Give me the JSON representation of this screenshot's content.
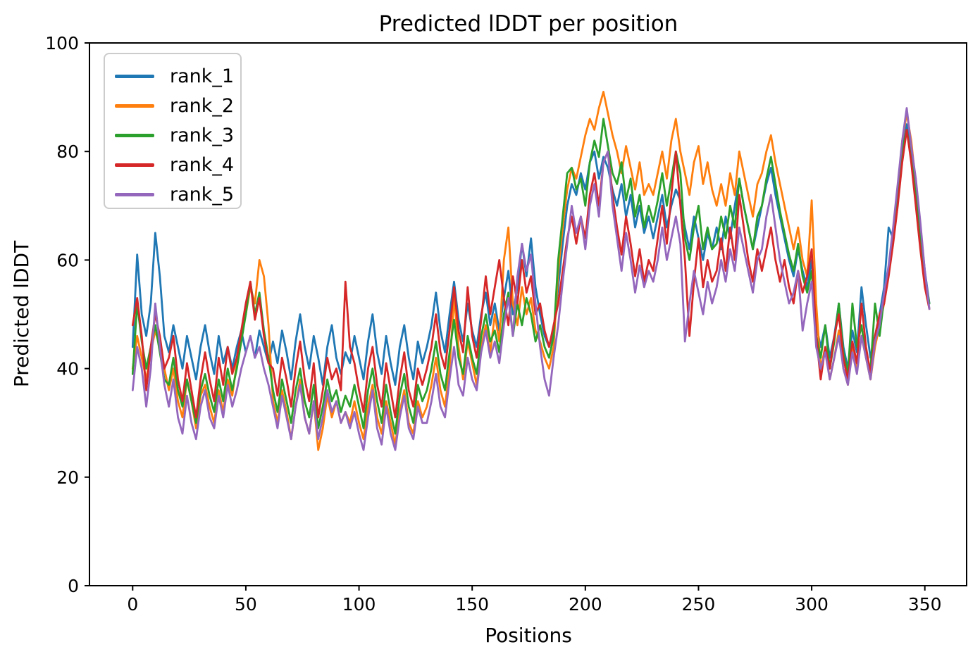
{
  "figure": {
    "kind": "matplotlib-line-plot",
    "background": "#ffffff",
    "spine_color": "#000000",
    "text_color": "#000000"
  },
  "chart_data": {
    "type": "line",
    "title": "Predicted lDDT per position",
    "xlabel": "Positions",
    "ylabel": "Predicted lDDT",
    "xticks": [
      0,
      50,
      100,
      150,
      200,
      250,
      300,
      350
    ],
    "yticks": [
      0,
      20,
      40,
      60,
      80,
      100
    ],
    "ylim": [
      0,
      100
    ],
    "xlim": [
      -17.6,
      369.6
    ],
    "grid": false,
    "legend_position": "upper left",
    "x_start": 0,
    "x_step": 2,
    "series": [
      {
        "name": "rank_1",
        "color": "#1f77b4",
        "values": [
          44,
          61,
          50,
          46,
          52,
          65,
          57,
          46,
          43,
          48,
          44,
          40,
          46,
          42,
          38,
          44,
          48,
          43,
          39,
          46,
          41,
          44,
          40,
          44,
          47,
          43,
          46,
          42,
          47,
          44,
          41,
          45,
          41,
          47,
          43,
          38,
          45,
          50,
          44,
          40,
          46,
          42,
          37,
          44,
          48,
          42,
          39,
          43,
          41,
          46,
          42,
          38,
          45,
          50,
          43,
          39,
          46,
          41,
          37,
          44,
          48,
          42,
          38,
          45,
          41,
          44,
          48,
          54,
          47,
          43,
          50,
          56,
          49,
          45,
          52,
          47,
          44,
          50,
          54,
          48,
          52,
          47,
          53,
          58,
          50,
          55,
          63,
          57,
          64,
          55,
          50,
          46,
          44,
          47,
          55,
          63,
          70,
          74,
          72,
          76,
          73,
          78,
          80,
          75,
          79,
          77,
          73,
          70,
          74,
          68,
          72,
          66,
          70,
          65,
          68,
          64,
          68,
          72,
          66,
          70,
          73,
          71,
          66,
          62,
          68,
          64,
          60,
          65,
          62,
          66,
          62,
          68,
          64,
          70,
          75,
          70,
          66,
          62,
          66,
          70,
          74,
          77,
          72,
          68,
          64,
          60,
          57,
          62,
          58,
          55,
          60,
          48,
          44,
          48,
          42,
          46,
          52,
          44,
          40,
          47,
          43,
          55,
          48,
          42,
          46,
          50,
          55,
          66,
          64,
          73,
          80,
          85,
          80,
          74,
          66,
          58,
          52
        ]
      },
      {
        "name": "rank_2",
        "color": "#ff7f0e",
        "values": [
          40,
          46,
          42,
          38,
          43,
          47,
          44,
          40,
          36,
          40,
          34,
          31,
          38,
          34,
          29,
          35,
          37,
          33,
          30,
          36,
          32,
          38,
          35,
          41,
          46,
          50,
          55,
          52,
          60,
          57,
          48,
          34,
          30,
          36,
          32,
          27,
          33,
          38,
          31,
          28,
          34,
          25,
          29,
          35,
          31,
          34,
          30,
          32,
          30,
          34,
          30,
          27,
          33,
          37,
          31,
          28,
          34,
          30,
          26,
          32,
          36,
          30,
          28,
          34,
          31,
          33,
          37,
          42,
          36,
          33,
          40,
          53,
          44,
          38,
          45,
          41,
          37,
          44,
          48,
          43,
          50,
          45,
          60,
          66,
          52,
          48,
          55,
          50,
          53,
          47,
          45,
          42,
          40,
          44,
          58,
          66,
          73,
          77,
          75,
          79,
          83,
          86,
          84,
          88,
          91,
          87,
          83,
          80,
          76,
          81,
          77,
          73,
          78,
          72,
          74,
          72,
          76,
          80,
          75,
          82,
          86,
          80,
          76,
          72,
          78,
          81,
          74,
          78,
          73,
          70,
          74,
          70,
          76,
          72,
          80,
          76,
          72,
          68,
          74,
          76,
          80,
          83,
          78,
          74,
          70,
          66,
          62,
          66,
          60,
          57,
          71,
          52,
          40,
          44,
          38,
          42,
          47,
          40,
          37,
          44,
          40,
          46,
          42,
          38,
          44,
          48,
          52,
          58,
          64,
          72,
          82,
          87,
          82,
          74,
          65,
          56,
          51
        ]
      },
      {
        "name": "rank_3",
        "color": "#2ca02c",
        "values": [
          39,
          52,
          45,
          40,
          44,
          48,
          43,
          38,
          37,
          42,
          36,
          33,
          38,
          34,
          30,
          36,
          39,
          35,
          32,
          38,
          34,
          40,
          36,
          40,
          45,
          50,
          56,
          50,
          54,
          47,
          42,
          36,
          32,
          38,
          34,
          30,
          36,
          40,
          34,
          31,
          37,
          29,
          33,
          38,
          34,
          36,
          32,
          35,
          33,
          37,
          33,
          29,
          36,
          40,
          34,
          30,
          37,
          32,
          28,
          35,
          39,
          33,
          30,
          37,
          34,
          36,
          40,
          45,
          39,
          36,
          43,
          49,
          42,
          39,
          46,
          42,
          39,
          46,
          50,
          45,
          47,
          43,
          50,
          54,
          46,
          52,
          48,
          53,
          50,
          45,
          48,
          44,
          42,
          46,
          60,
          68,
          76,
          77,
          73,
          75,
          70,
          78,
          82,
          79,
          86,
          81,
          76,
          74,
          78,
          71,
          75,
          68,
          72,
          66,
          70,
          67,
          71,
          76,
          70,
          75,
          80,
          76,
          64,
          60,
          66,
          70,
          62,
          66,
          62,
          63,
          68,
          64,
          70,
          66,
          75,
          70,
          66,
          62,
          68,
          70,
          75,
          79,
          74,
          69,
          65,
          61,
          58,
          63,
          57,
          54,
          58,
          46,
          42,
          48,
          40,
          45,
          52,
          43,
          39,
          52,
          44,
          48,
          42,
          40,
          52,
          46,
          53,
          58,
          65,
          72,
          80,
          84,
          79,
          72,
          64,
          57,
          52
        ]
      },
      {
        "name": "rank_4",
        "color": "#d62728",
        "values": [
          48,
          53,
          46,
          36,
          44,
          50,
          46,
          40,
          42,
          46,
          38,
          34,
          41,
          36,
          31,
          38,
          43,
          38,
          34,
          42,
          37,
          44,
          39,
          42,
          47,
          52,
          56,
          49,
          53,
          46,
          41,
          40,
          35,
          42,
          38,
          33,
          40,
          45,
          38,
          34,
          41,
          31,
          36,
          42,
          38,
          40,
          36,
          56,
          44,
          41,
          36,
          32,
          40,
          44,
          37,
          33,
          41,
          36,
          31,
          38,
          43,
          36,
          33,
          40,
          37,
          40,
          44,
          50,
          43,
          40,
          47,
          55,
          47,
          43,
          55,
          46,
          42,
          49,
          57,
          50,
          55,
          60,
          53,
          48,
          57,
          52,
          60,
          54,
          57,
          50,
          52,
          47,
          44,
          48,
          52,
          58,
          64,
          68,
          63,
          68,
          64,
          72,
          76,
          70,
          78,
          80,
          72,
          66,
          61,
          68,
          63,
          57,
          62,
          56,
          60,
          58,
          64,
          70,
          63,
          72,
          80,
          70,
          60,
          46,
          56,
          64,
          55,
          60,
          56,
          58,
          64,
          58,
          66,
          60,
          72,
          66,
          60,
          56,
          62,
          58,
          62,
          66,
          60,
          56,
          60,
          55,
          52,
          58,
          54,
          57,
          62,
          46,
          38,
          44,
          40,
          46,
          50,
          42,
          38,
          45,
          41,
          52,
          44,
          39,
          46,
          50,
          52,
          57,
          63,
          70,
          78,
          84,
          78,
          70,
          62,
          55,
          51
        ]
      },
      {
        "name": "rank_5",
        "color": "#9467bd",
        "values": [
          36,
          44,
          40,
          33,
          40,
          52,
          44,
          37,
          33,
          38,
          31,
          28,
          35,
          30,
          27,
          33,
          36,
          31,
          29,
          35,
          31,
          37,
          33,
          36,
          40,
          43,
          46,
          42,
          44,
          40,
          37,
          33,
          29,
          35,
          31,
          27,
          33,
          37,
          31,
          28,
          34,
          27,
          31,
          36,
          32,
          34,
          30,
          32,
          29,
          32,
          28,
          25,
          31,
          36,
          29,
          26,
          33,
          28,
          25,
          31,
          35,
          29,
          27,
          33,
          30,
          30,
          34,
          39,
          33,
          31,
          38,
          44,
          37,
          35,
          42,
          38,
          36,
          43,
          47,
          42,
          45,
          41,
          48,
          53,
          46,
          57,
          63,
          58,
          61,
          52,
          44,
          38,
          35,
          42,
          48,
          56,
          63,
          70,
          65,
          68,
          62,
          70,
          74,
          68,
          78,
          80,
          70,
          64,
          58,
          65,
          60,
          54,
          59,
          55,
          58,
          56,
          60,
          66,
          60,
          64,
          68,
          63,
          45,
          52,
          58,
          54,
          50,
          56,
          52,
          55,
          60,
          56,
          62,
          58,
          66,
          62,
          58,
          54,
          60,
          62,
          68,
          72,
          66,
          60,
          56,
          52,
          54,
          58,
          47,
          52,
          56,
          44,
          40,
          43,
          38,
          42,
          46,
          40,
          37,
          43,
          39,
          46,
          42,
          38,
          45,
          48,
          54,
          59,
          66,
          74,
          82,
          88,
          81,
          75,
          67,
          58,
          51
        ]
      }
    ]
  }
}
